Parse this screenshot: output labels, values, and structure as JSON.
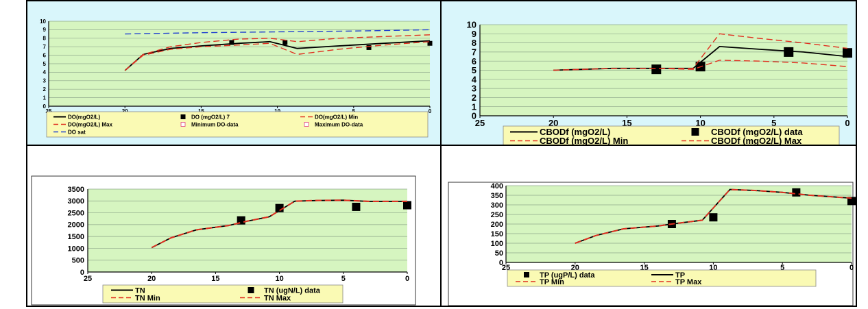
{
  "chart_data": [
    {
      "id": "do",
      "type": "line",
      "title": "",
      "xlabel": "",
      "ylabel": "",
      "xlim": [
        25,
        0
      ],
      "ylim": [
        0,
        10
      ],
      "x_ticks": [
        25,
        20,
        15,
        10,
        5,
        0
      ],
      "y_ticks": [
        0,
        1,
        2,
        3,
        4,
        5,
        6,
        7,
        8,
        9,
        10
      ],
      "grid": true,
      "legend_position": "bottom",
      "series": [
        {
          "name": "DO(mgO2/L)",
          "style": "solid",
          "color": "#000000",
          "x": [
            20,
            18.8,
            17,
            15,
            12.5,
            10.5,
            8.7,
            6,
            3,
            0
          ],
          "y": [
            4.2,
            6.1,
            6.8,
            7.1,
            7.4,
            7.6,
            6.8,
            7.1,
            7.4,
            7.7
          ]
        },
        {
          "name": "DO (mgO2/L) 7",
          "style": "marker",
          "color": "#000000",
          "x": [
            13,
            9.5,
            4,
            0
          ],
          "y": [
            7.5,
            7.5,
            6.9,
            7.4
          ]
        },
        {
          "name": "DO(mgO2/L) Min",
          "style": "dashed",
          "color": "#e03020",
          "x": [
            20,
            18.8,
            17,
            15,
            12.5,
            10.5,
            8.7,
            6,
            3,
            0
          ],
          "y": [
            4.2,
            6.0,
            6.7,
            7.0,
            7.2,
            7.4,
            6.1,
            6.7,
            7.2,
            7.6
          ]
        },
        {
          "name": "DO(mgO2/L) Max",
          "style": "dashed",
          "color": "#e03020",
          "x": [
            20,
            18.8,
            17,
            15,
            12.5,
            10.5,
            8.7,
            6,
            3,
            0
          ],
          "y": [
            4.2,
            6.1,
            7.0,
            7.5,
            7.9,
            8.0,
            7.6,
            8.0,
            8.2,
            8.4
          ]
        },
        {
          "name": "Minimum DO-data",
          "style": "none",
          "color": "#e04080",
          "x": [],
          "y": []
        },
        {
          "name": "Maximum DO-data",
          "style": "none",
          "color": "#e04080",
          "x": [],
          "y": []
        },
        {
          "name": "DO sat",
          "style": "dashed",
          "color": "#2040d0",
          "x": [
            20,
            15,
            10,
            5,
            0
          ],
          "y": [
            8.5,
            8.65,
            8.75,
            8.85,
            9.0
          ]
        }
      ]
    },
    {
      "id": "cbod",
      "type": "line",
      "title": "",
      "xlabel": "",
      "ylabel": "",
      "xlim": [
        25,
        0
      ],
      "ylim": [
        0,
        10
      ],
      "x_ticks": [
        25,
        20,
        15,
        10,
        5,
        0
      ],
      "y_ticks": [
        0,
        1,
        2,
        3,
        4,
        5,
        6,
        7,
        8,
        9,
        10
      ],
      "grid": true,
      "legend_position": "bottom",
      "series": [
        {
          "name": "CBODf (mgO2/L)",
          "style": "solid",
          "color": "#000000",
          "x": [
            20,
            18,
            16,
            13,
            10.5,
            8.7,
            6,
            3,
            0
          ],
          "y": [
            5.0,
            5.1,
            5.2,
            5.2,
            5.2,
            7.6,
            7.3,
            7.0,
            6.5
          ]
        },
        {
          "name": "CBODf (mgO2/L) data",
          "style": "marker",
          "color": "#000000",
          "x": [
            13,
            10,
            4,
            0
          ],
          "y": [
            5.1,
            5.4,
            7.0,
            6.9
          ]
        },
        {
          "name": "CBODf (mgO2/L) Min",
          "style": "dashed",
          "color": "#e03020",
          "x": [
            20,
            18,
            16,
            13,
            10.5,
            8.7,
            6,
            3,
            0
          ],
          "y": [
            5.0,
            5.1,
            5.2,
            5.2,
            5.1,
            6.1,
            6.0,
            5.8,
            5.4
          ]
        },
        {
          "name": "CBODf (mgO2/L) Max",
          "style": "dashed",
          "color": "#e03020",
          "x": [
            20,
            18,
            16,
            13,
            10.5,
            8.7,
            6,
            3,
            0
          ],
          "y": [
            5.0,
            5.1,
            5.2,
            5.2,
            5.2,
            9.0,
            8.5,
            8.0,
            7.4
          ]
        }
      ]
    },
    {
      "id": "tn",
      "type": "line",
      "title": "",
      "xlabel": "",
      "ylabel": "",
      "xlim": [
        25,
        0
      ],
      "ylim": [
        0,
        3500
      ],
      "x_ticks": [
        25,
        20,
        15,
        10,
        5,
        0
      ],
      "y_ticks": [
        0,
        500,
        1000,
        1500,
        2000,
        2500,
        3000,
        3500
      ],
      "grid": true,
      "legend_position": "bottom",
      "series": [
        {
          "name": "TN",
          "style": "solid",
          "color": "#000000",
          "x": [
            20,
            18.5,
            16.5,
            14,
            12.5,
            10.8,
            8.8,
            7,
            5,
            3,
            0
          ],
          "y": [
            1030,
            1440,
            1780,
            1960,
            2150,
            2330,
            2990,
            3020,
            3030,
            2980,
            2980
          ]
        },
        {
          "name": "TN (ugN/L) data",
          "style": "marker",
          "color": "#000000",
          "x": [
            13,
            10,
            4,
            0
          ],
          "y": [
            2180,
            2700,
            2750,
            2820
          ]
        },
        {
          "name": "TN Min",
          "style": "dashed",
          "color": "#e03020",
          "x": [
            20,
            18.5,
            16.5,
            14,
            12.5,
            10.8,
            8.8,
            7,
            5,
            3,
            0
          ],
          "y": [
            1030,
            1430,
            1770,
            1950,
            2140,
            2320,
            2980,
            3010,
            3020,
            2970,
            2970
          ]
        },
        {
          "name": "TN Max",
          "style": "dashed",
          "color": "#e03020",
          "x": [
            20,
            18.5,
            16.5,
            14,
            12.5,
            10.8,
            8.8,
            7,
            5,
            3,
            0
          ],
          "y": [
            1040,
            1450,
            1790,
            1970,
            2160,
            2340,
            3000,
            3030,
            3040,
            2990,
            2990
          ]
        }
      ]
    },
    {
      "id": "tp",
      "type": "line",
      "title": "",
      "xlabel": "",
      "ylabel": "",
      "xlim": [
        25,
        0
      ],
      "ylim": [
        0,
        400
      ],
      "x_ticks": [
        25,
        20,
        15,
        10,
        5,
        0
      ],
      "y_ticks": [
        0,
        50,
        100,
        150,
        200,
        250,
        300,
        350,
        400
      ],
      "grid": true,
      "legend_position": "bottom",
      "series": [
        {
          "name": "TP (ugP/L) data",
          "style": "marker",
          "color": "#000000",
          "x": [
            13,
            10,
            4,
            0
          ],
          "y": [
            200,
            235,
            365,
            320
          ]
        },
        {
          "name": "TP",
          "style": "solid",
          "color": "#000000",
          "x": [
            20,
            18.5,
            16.5,
            14,
            12.5,
            10.8,
            8.8,
            7,
            5,
            3,
            0
          ],
          "y": [
            100,
            140,
            175,
            190,
            205,
            220,
            380,
            375,
            365,
            350,
            335
          ]
        },
        {
          "name": "TP Min",
          "style": "dashed",
          "color": "#e03020",
          "x": [
            20,
            18.5,
            16.5,
            14,
            12.5,
            10.8,
            8.8,
            7,
            5,
            3,
            0
          ],
          "y": [
            99,
            139,
            174,
            189,
            204,
            219,
            379,
            374,
            364,
            349,
            334
          ]
        },
        {
          "name": "TP Max",
          "style": "dashed",
          "color": "#e03020",
          "x": [
            20,
            18.5,
            16.5,
            14,
            12.5,
            10.8,
            8.8,
            7,
            5,
            3,
            0
          ],
          "y": [
            101,
            141,
            176,
            191,
            206,
            221,
            381,
            376,
            366,
            351,
            336
          ]
        }
      ]
    }
  ],
  "colors": {
    "cell_background": "#d9f6fb",
    "plot_background": "#d6f5c0",
    "legend_background": "#fafab4",
    "series_solid": "#000000",
    "series_dashed": "#e03020",
    "do_sat": "#2040d0"
  }
}
